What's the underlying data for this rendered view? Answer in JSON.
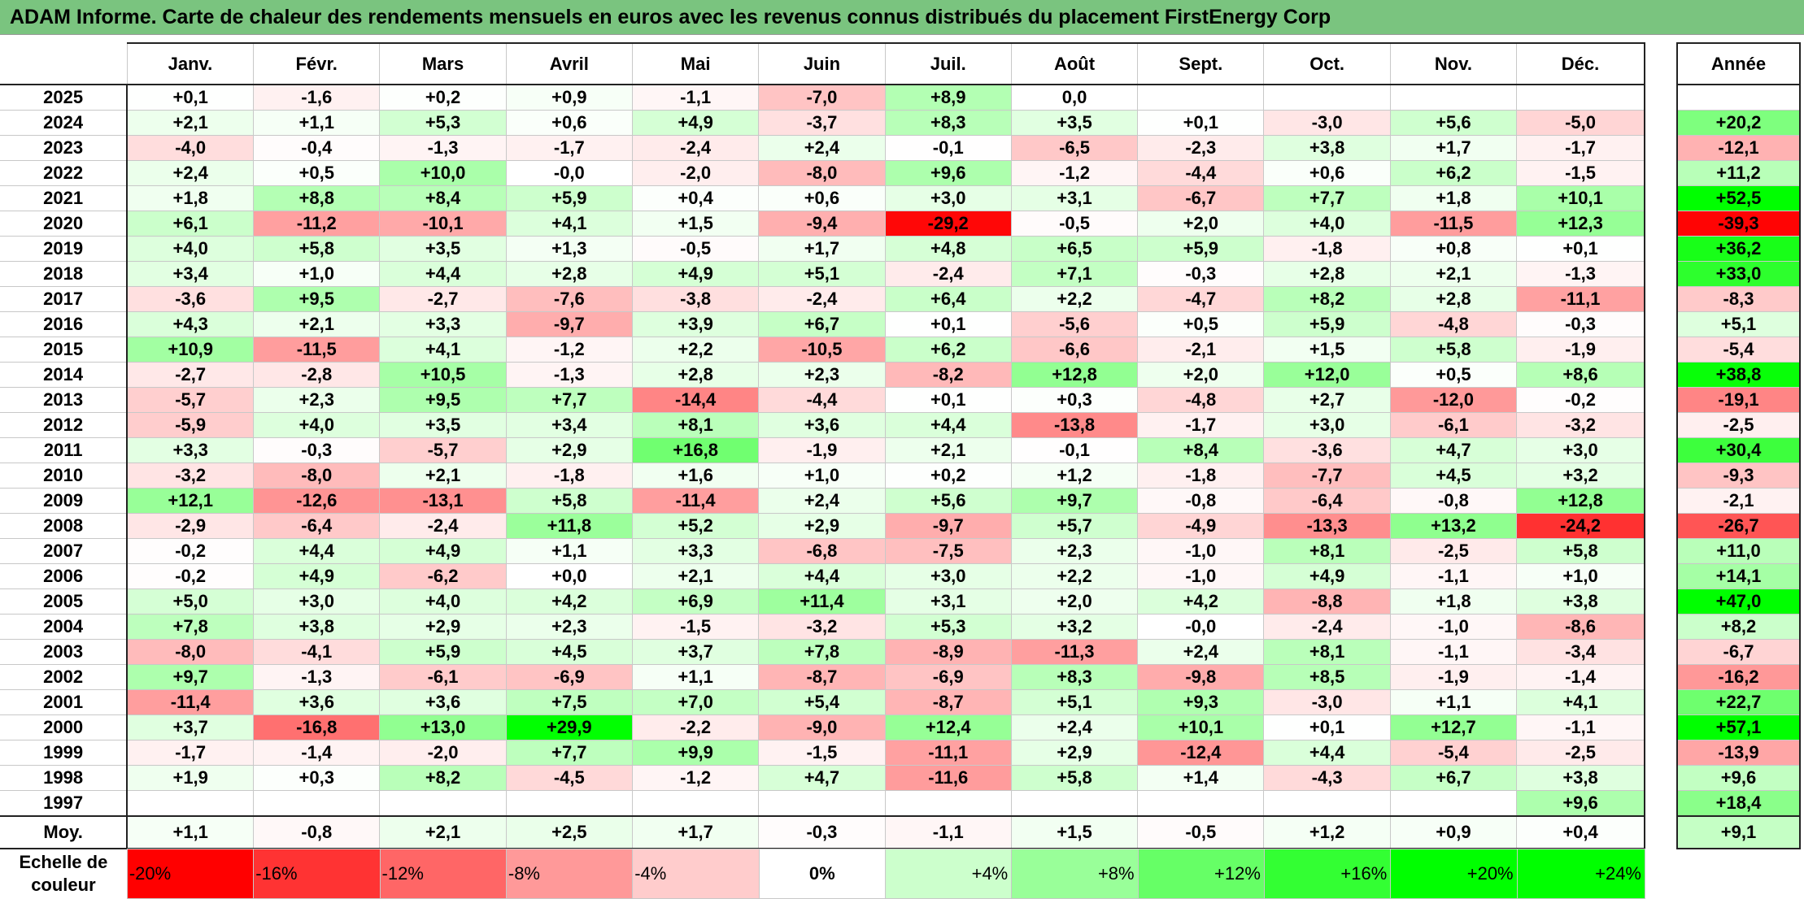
{
  "title": "ADAM Informe. Carte de chaleur des rendements mensuels en euros avec les revenus connus distribués du placement FirstEnergy Corp",
  "months": [
    "Janv.",
    "Févr.",
    "Mars",
    "Avril",
    "Mai",
    "Juin",
    "Juil.",
    "Août",
    "Sept.",
    "Oct.",
    "Nov.",
    "Déc."
  ],
  "annual_header": "Année",
  "avg_label": "Moy.",
  "scale_label_line1": "Echelle de",
  "scale_label_line2": "couleur",
  "scale": [
    "-20%",
    "-16%",
    "-12%",
    "-8%",
    "-4%",
    "0%",
    "+4%",
    "+8%",
    "+12%",
    "+16%",
    "+20%",
    "+24%"
  ],
  "chart_data": {
    "type": "heatmap",
    "title": "ADAM Informe. Carte de chaleur des rendements mensuels en euros avec les revenus connus distribués du placement FirstEnergy Corp",
    "colors": {
      "negative_max": "#ff0000",
      "zero": "#ffffff",
      "positive_max": "#00ff00"
    },
    "rows": [
      {
        "year": "2025",
        "values": [
          "+0,1",
          "-1,6",
          "+0,2",
          "+0,9",
          "-1,1",
          "-7,0",
          "+8,9",
          "0,0",
          "",
          "",
          "",
          ""
        ],
        "annual": ""
      },
      {
        "year": "2024",
        "values": [
          "+2,1",
          "+1,1",
          "+5,3",
          "+0,6",
          "+4,9",
          "-3,7",
          "+8,3",
          "+3,5",
          "+0,1",
          "-3,0",
          "+5,6",
          "-5,0"
        ],
        "annual": "+20,2"
      },
      {
        "year": "2023",
        "values": [
          "-4,0",
          "-0,4",
          "-1,3",
          "-1,7",
          "-2,4",
          "+2,4",
          "-0,1",
          "-6,5",
          "-2,3",
          "+3,8",
          "+1,7",
          "-1,7"
        ],
        "annual": "-12,1"
      },
      {
        "year": "2022",
        "values": [
          "+2,4",
          "+0,5",
          "+10,0",
          "-0,0",
          "-2,0",
          "-8,0",
          "+9,6",
          "-1,2",
          "-4,4",
          "+0,6",
          "+6,2",
          "-1,5"
        ],
        "annual": "+11,2"
      },
      {
        "year": "2021",
        "values": [
          "+1,8",
          "+8,8",
          "+8,4",
          "+5,9",
          "+0,4",
          "+0,6",
          "+3,0",
          "+3,1",
          "-6,7",
          "+7,7",
          "+1,8",
          "+10,1"
        ],
        "annual": "+52,5"
      },
      {
        "year": "2020",
        "values": [
          "+6,1",
          "-11,2",
          "-10,1",
          "+4,1",
          "+1,5",
          "-9,4",
          "-29,2",
          "-0,5",
          "+2,0",
          "+4,0",
          "-11,5",
          "+12,3"
        ],
        "annual": "-39,3"
      },
      {
        "year": "2019",
        "values": [
          "+4,0",
          "+5,8",
          "+3,5",
          "+1,3",
          "-0,5",
          "+1,7",
          "+4,8",
          "+6,5",
          "+5,9",
          "-1,8",
          "+0,8",
          "+0,1"
        ],
        "annual": "+36,2"
      },
      {
        "year": "2018",
        "values": [
          "+3,4",
          "+1,0",
          "+4,4",
          "+2,8",
          "+4,9",
          "+5,1",
          "-2,4",
          "+7,1",
          "-0,3",
          "+2,8",
          "+2,1",
          "-1,3"
        ],
        "annual": "+33,0"
      },
      {
        "year": "2017",
        "values": [
          "-3,6",
          "+9,5",
          "-2,7",
          "-7,6",
          "-3,8",
          "-2,4",
          "+6,4",
          "+2,2",
          "-4,7",
          "+8,2",
          "+2,8",
          "-11,1"
        ],
        "annual": "-8,3"
      },
      {
        "year": "2016",
        "values": [
          "+4,3",
          "+2,1",
          "+3,3",
          "-9,7",
          "+3,9",
          "+6,7",
          "+0,1",
          "-5,6",
          "+0,5",
          "+5,9",
          "-4,8",
          "-0,3"
        ],
        "annual": "+5,1"
      },
      {
        "year": "2015",
        "values": [
          "+10,9",
          "-11,5",
          "+4,1",
          "-1,2",
          "+2,2",
          "-10,5",
          "+6,2",
          "-6,6",
          "-2,1",
          "+1,5",
          "+5,8",
          "-1,9"
        ],
        "annual": "-5,4"
      },
      {
        "year": "2014",
        "values": [
          "-2,7",
          "-2,8",
          "+10,5",
          "-1,3",
          "+2,8",
          "+2,3",
          "-8,2",
          "+12,8",
          "+2,0",
          "+12,0",
          "+0,5",
          "+8,6"
        ],
        "annual": "+38,8"
      },
      {
        "year": "2013",
        "values": [
          "-5,7",
          "+2,3",
          "+9,5",
          "+7,7",
          "-14,4",
          "-4,4",
          "+0,1",
          "+0,3",
          "-4,8",
          "+2,7",
          "-12,0",
          "-0,2"
        ],
        "annual": "-19,1"
      },
      {
        "year": "2012",
        "values": [
          "-5,9",
          "+4,0",
          "+3,5",
          "+3,4",
          "+8,1",
          "+3,6",
          "+4,4",
          "-13,8",
          "-1,7",
          "+3,0",
          "-6,1",
          "-3,2"
        ],
        "annual": "-2,5"
      },
      {
        "year": "2011",
        "values": [
          "+3,3",
          "-0,3",
          "-5,7",
          "+2,9",
          "+16,8",
          "-1,9",
          "+2,1",
          "-0,1",
          "+8,4",
          "-3,6",
          "+4,7",
          "+3,0"
        ],
        "annual": "+30,4"
      },
      {
        "year": "2010",
        "values": [
          "-3,2",
          "-8,0",
          "+2,1",
          "-1,8",
          "+1,6",
          "+1,0",
          "+0,2",
          "+1,2",
          "-1,8",
          "-7,7",
          "+4,5",
          "+3,2"
        ],
        "annual": "-9,3"
      },
      {
        "year": "2009",
        "values": [
          "+12,1",
          "-12,6",
          "-13,1",
          "+5,8",
          "-11,4",
          "+2,4",
          "+5,6",
          "+9,7",
          "-0,8",
          "-6,4",
          "-0,8",
          "+12,8"
        ],
        "annual": "-2,1"
      },
      {
        "year": "2008",
        "values": [
          "-2,9",
          "-6,4",
          "-2,4",
          "+11,8",
          "+5,2",
          "+2,9",
          "-9,7",
          "+5,7",
          "-4,9",
          "-13,3",
          "+13,2",
          "-24,2"
        ],
        "annual": "-26,7"
      },
      {
        "year": "2007",
        "values": [
          "-0,2",
          "+4,4",
          "+4,9",
          "+1,1",
          "+3,3",
          "-6,8",
          "-7,5",
          "+2,3",
          "-1,0",
          "+8,1",
          "-2,5",
          "+5,8"
        ],
        "annual": "+11,0"
      },
      {
        "year": "2006",
        "values": [
          "-0,2",
          "+4,9",
          "-6,2",
          "+0,0",
          "+2,1",
          "+4,4",
          "+3,0",
          "+2,2",
          "-1,0",
          "+4,9",
          "-1,1",
          "+1,0"
        ],
        "annual": "+14,1"
      },
      {
        "year": "2005",
        "values": [
          "+5,0",
          "+3,0",
          "+4,0",
          "+4,2",
          "+6,9",
          "+11,4",
          "+3,1",
          "+2,0",
          "+4,2",
          "-8,8",
          "+1,8",
          "+3,8"
        ],
        "annual": "+47,0"
      },
      {
        "year": "2004",
        "values": [
          "+7,8",
          "+3,8",
          "+2,9",
          "+2,3",
          "-1,5",
          "-3,2",
          "+5,3",
          "+3,2",
          "-0,0",
          "-2,4",
          "-1,0",
          "-8,6"
        ],
        "annual": "+8,2"
      },
      {
        "year": "2003",
        "values": [
          "-8,0",
          "-4,1",
          "+5,9",
          "+4,5",
          "+3,7",
          "+7,8",
          "-8,9",
          "-11,3",
          "+2,4",
          "+8,1",
          "-1,1",
          "-3,4"
        ],
        "annual": "-6,7"
      },
      {
        "year": "2002",
        "values": [
          "+9,7",
          "-1,3",
          "-6,1",
          "-6,9",
          "+1,1",
          "-8,7",
          "-6,9",
          "+8,3",
          "-9,8",
          "+8,5",
          "-1,9",
          "-1,4"
        ],
        "annual": "-16,2"
      },
      {
        "year": "2001",
        "values": [
          "-11,4",
          "+3,6",
          "+3,6",
          "+7,5",
          "+7,0",
          "+5,4",
          "-8,7",
          "+5,1",
          "+9,3",
          "-3,0",
          "+1,1",
          "+4,1"
        ],
        "annual": "+22,7"
      },
      {
        "year": "2000",
        "values": [
          "+3,7",
          "-16,8",
          "+13,0",
          "+29,9",
          "-2,2",
          "-9,0",
          "+12,4",
          "+2,4",
          "+10,1",
          "+0,1",
          "+12,7",
          "-1,1"
        ],
        "annual": "+57,1"
      },
      {
        "year": "1999",
        "values": [
          "-1,7",
          "-1,4",
          "-2,0",
          "+7,7",
          "+9,9",
          "-1,5",
          "-11,1",
          "+2,9",
          "-12,4",
          "+4,4",
          "-5,4",
          "-2,5"
        ],
        "annual": "-13,9"
      },
      {
        "year": "1998",
        "values": [
          "+1,9",
          "+0,3",
          "+8,2",
          "-4,5",
          "-1,2",
          "+4,7",
          "-11,6",
          "+5,8",
          "+1,4",
          "-4,3",
          "+6,7",
          "+3,8"
        ],
        "annual": "+9,6"
      },
      {
        "year": "1997",
        "values": [
          "",
          "",
          "",
          "",
          "",
          "",
          "",
          "",
          "",
          "",
          "",
          "+9,6"
        ],
        "annual": "+18,4"
      }
    ],
    "averages": [
      "+1,1",
      "-0,8",
      "+2,1",
      "+2,5",
      "+1,7",
      "-0,3",
      "-1,1",
      "+1,5",
      "-0,5",
      "+1,2",
      "+0,9",
      "+0,4"
    ],
    "annual_average": "+9,1"
  }
}
